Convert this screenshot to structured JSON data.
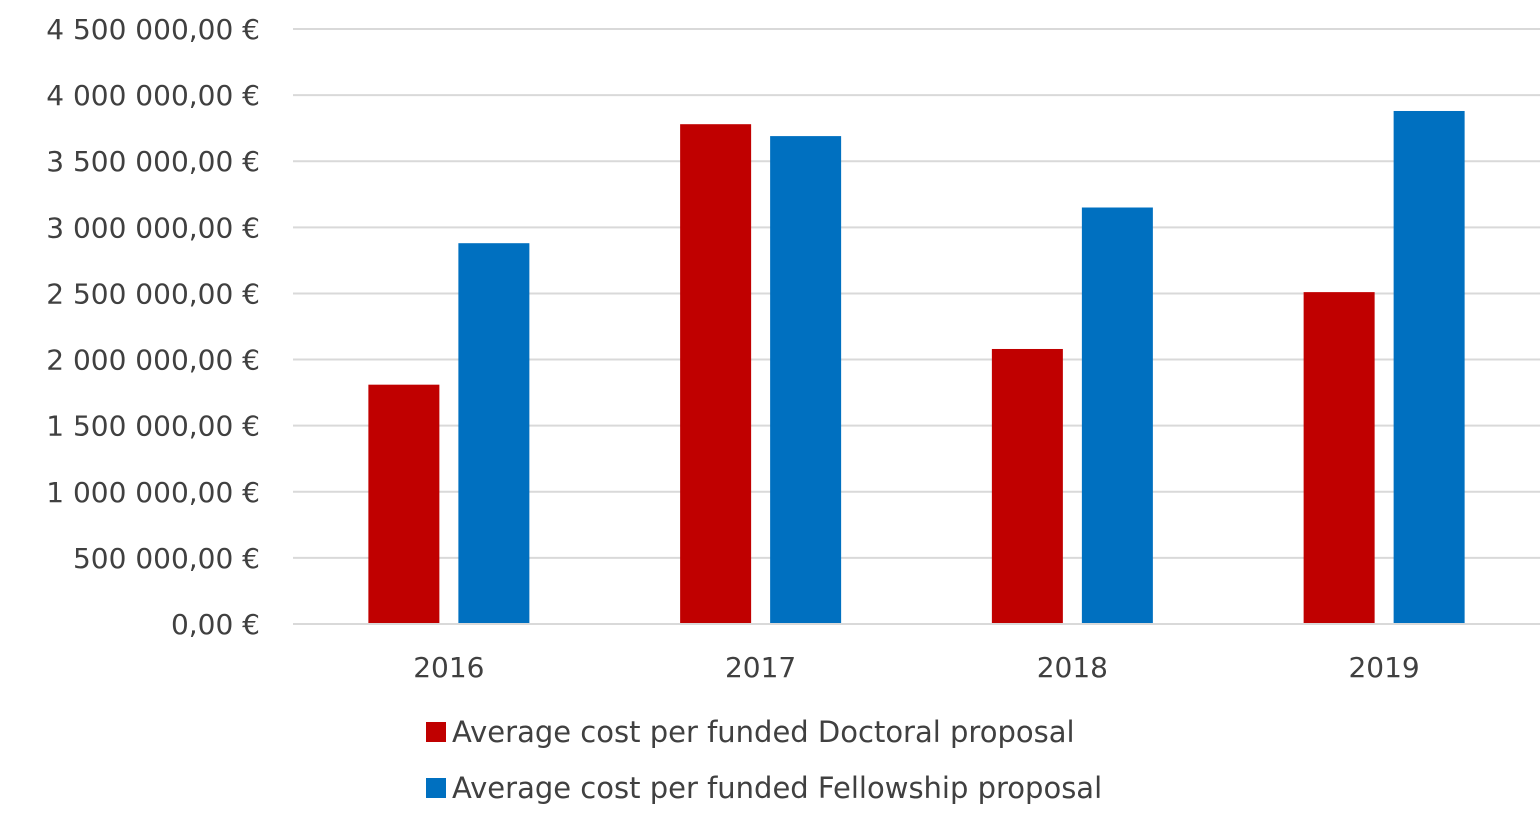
{
  "chart_data": {
    "type": "bar",
    "categories": [
      "2016",
      "2017",
      "2018",
      "2019"
    ],
    "series": [
      {
        "name": "Average cost per funded Doctoral proposal",
        "color": "#C00000",
        "values": [
          1810000,
          3780000,
          2080000,
          2510000
        ]
      },
      {
        "name": "Average cost per funded Fellowship proposal",
        "color": "#0070C0",
        "values": [
          2880000,
          3690000,
          3150000,
          3880000
        ]
      }
    ],
    "ylim": [
      0,
      4500000
    ],
    "ytick_step": 500000,
    "ytick_labels": [
      "0,00 €",
      "500 000,00 €",
      "1 000 000,00 €",
      "1 500 000,00 €",
      "2 000 000,00 €",
      "2 500 000,00 €",
      "3 000 000,00 €",
      "3 500 000,00 €",
      "4 000 000,00 €",
      "4 500 000,00 €"
    ],
    "grid": true,
    "legend_position": "bottom",
    "title": "",
    "xlabel": "",
    "ylabel": ""
  }
}
